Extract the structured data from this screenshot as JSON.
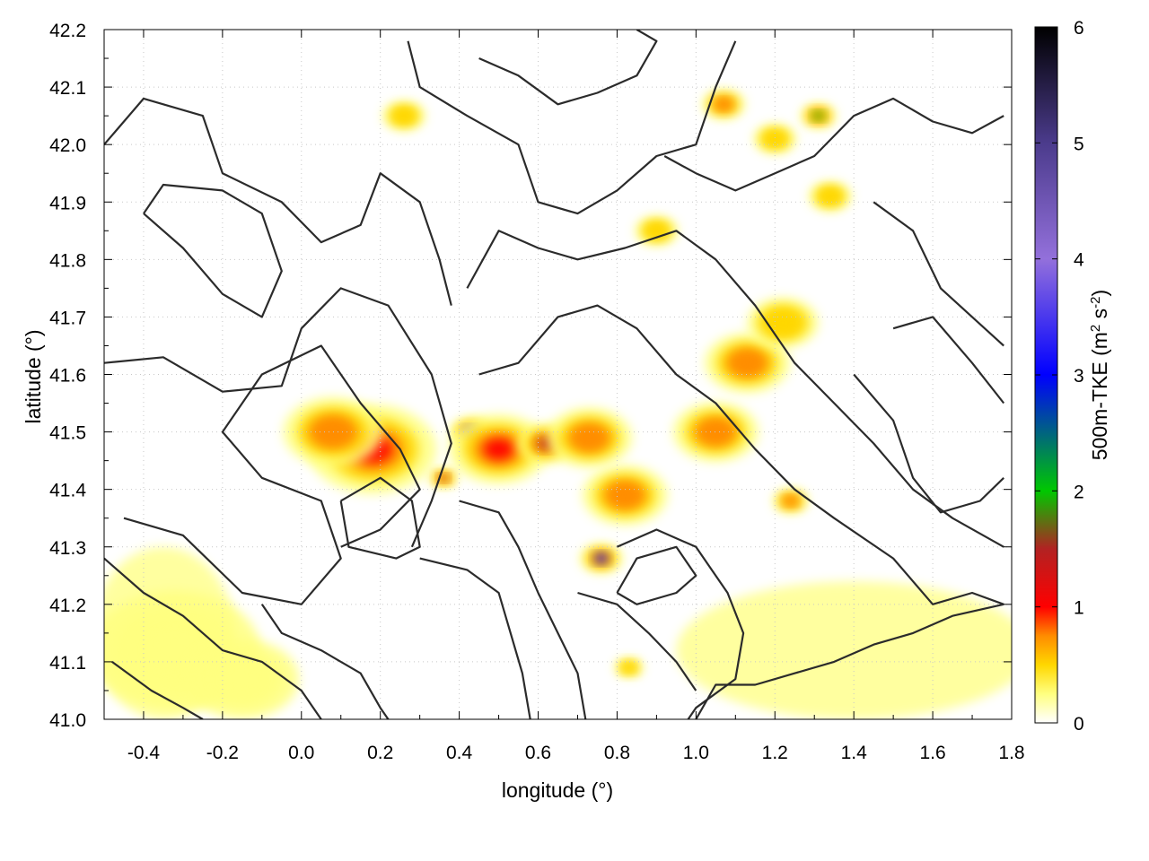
{
  "chart_data": {
    "type": "heatmap",
    "title": "",
    "xlabel": "longitude (°)",
    "ylabel": "latitude (°)",
    "colorbar_label": "500m-TKE (m² s⁻²)",
    "colorbar_label_parts": {
      "main": "500m-TKE (m",
      "sup1": "2",
      "mid": " s",
      "sup2": "-2",
      "end": ")"
    },
    "xlim": [
      -0.5,
      1.8
    ],
    "ylim": [
      41.0,
      42.2
    ],
    "zlim": [
      0,
      6
    ],
    "x_ticks": [
      "-0.4",
      "-0.2",
      "0.0",
      "0.2",
      "0.4",
      "0.6",
      "0.8",
      "1.0",
      "1.2",
      "1.4",
      "1.6",
      "1.8"
    ],
    "x_tick_values": [
      -0.4,
      -0.2,
      0.0,
      0.2,
      0.4,
      0.6,
      0.8,
      1.0,
      1.2,
      1.4,
      1.6,
      1.8
    ],
    "y_ticks": [
      "41.0",
      "41.1",
      "41.2",
      "41.3",
      "41.4",
      "41.5",
      "41.6",
      "41.7",
      "41.8",
      "41.9",
      "42.0",
      "42.1",
      "42.2"
    ],
    "y_tick_values": [
      41.0,
      41.1,
      41.2,
      41.3,
      41.4,
      41.5,
      41.6,
      41.7,
      41.8,
      41.9,
      42.0,
      42.1,
      42.2
    ],
    "colorbar_ticks": [
      "0",
      "1",
      "2",
      "3",
      "4",
      "5",
      "6"
    ],
    "colorbar_tick_values": [
      0,
      1,
      2,
      3,
      4,
      5,
      6
    ],
    "colormap": [
      {
        "v": 0.0,
        "color": "#ffffff"
      },
      {
        "v": 0.25,
        "color": "#ffff80"
      },
      {
        "v": 0.5,
        "color": "#ffd700"
      },
      {
        "v": 0.75,
        "color": "#ff8c00"
      },
      {
        "v": 1.0,
        "color": "#ff0000"
      },
      {
        "v": 1.5,
        "color": "#b22222"
      },
      {
        "v": 2.0,
        "color": "#00c800"
      },
      {
        "v": 3.0,
        "color": "#0000ff"
      },
      {
        "v": 4.0,
        "color": "#9370db"
      },
      {
        "v": 5.0,
        "color": "#4b3b8c"
      },
      {
        "v": 6.0,
        "color": "#000000"
      }
    ],
    "grid": true,
    "contour_color": "#2b2b2b",
    "hotspots": [
      {
        "lon": 0.18,
        "lat": 41.47,
        "tke": 1.1,
        "r": 0.09
      },
      {
        "lon": 0.08,
        "lat": 41.5,
        "tke": 0.9,
        "r": 0.07
      },
      {
        "lon": 0.43,
        "lat": 41.5,
        "tke": 3.0,
        "r": 0.03
      },
      {
        "lon": 0.5,
        "lat": 41.47,
        "tke": 1.0,
        "r": 0.07
      },
      {
        "lon": 0.62,
        "lat": 41.48,
        "tke": 1.6,
        "r": 0.04
      },
      {
        "lon": 0.76,
        "lat": 41.28,
        "tke": 3.0,
        "r": 0.03
      },
      {
        "lon": 0.82,
        "lat": 41.39,
        "tke": 0.8,
        "r": 0.06
      },
      {
        "lon": 0.73,
        "lat": 41.49,
        "tke": 0.8,
        "r": 0.06
      },
      {
        "lon": 1.05,
        "lat": 41.5,
        "tke": 0.8,
        "r": 0.06
      },
      {
        "lon": 1.13,
        "lat": 41.62,
        "tke": 0.9,
        "r": 0.06
      },
      {
        "lon": 1.22,
        "lat": 41.69,
        "tke": 0.7,
        "r": 0.05
      },
      {
        "lon": 1.31,
        "lat": 42.05,
        "tke": 2.4,
        "r": 0.025
      },
      {
        "lon": 1.2,
        "lat": 42.01,
        "tke": 0.7,
        "r": 0.03
      },
      {
        "lon": 1.07,
        "lat": 42.07,
        "tke": 0.8,
        "r": 0.03
      },
      {
        "lon": 0.9,
        "lat": 41.85,
        "tke": 0.6,
        "r": 0.03
      },
      {
        "lon": 1.34,
        "lat": 41.91,
        "tke": 0.6,
        "r": 0.03
      },
      {
        "lon": 0.36,
        "lat": 41.42,
        "tke": 1.8,
        "r": 0.02
      },
      {
        "lon": 1.24,
        "lat": 41.38,
        "tke": 0.8,
        "r": 0.025
      },
      {
        "lon": 0.83,
        "lat": 41.09,
        "tke": 0.6,
        "r": 0.02
      },
      {
        "lon": -0.32,
        "lat": 41.12,
        "tke": 0.45,
        "r": 0.12
      },
      {
        "lon": -0.15,
        "lat": 41.07,
        "tke": 0.35,
        "r": 0.08
      },
      {
        "lon": 0.26,
        "lat": 42.05,
        "tke": 0.5,
        "r": 0.03
      }
    ],
    "background_patches": [
      {
        "lon": 1.4,
        "lat": 41.12,
        "tke": 0.3,
        "rx": 0.45,
        "ry": 0.12
      },
      {
        "lon": -0.35,
        "lat": 41.15,
        "tke": 0.25,
        "rx": 0.18,
        "ry": 0.15
      },
      {
        "lon": 0.05,
        "lat": 41.62,
        "tke": 0.15,
        "rx": 0.3,
        "ry": 0.2
      }
    ],
    "contours": [
      [
        [
          -0.45,
          41.35
        ],
        [
          -0.3,
          41.32
        ],
        [
          -0.15,
          41.22
        ],
        [
          0.0,
          41.2
        ],
        [
          0.1,
          41.28
        ],
        [
          0.05,
          41.38
        ],
        [
          -0.1,
          41.42
        ],
        [
          -0.2,
          41.5
        ],
        [
          -0.1,
          41.6
        ],
        [
          0.05,
          41.65
        ],
        [
          0.15,
          41.55
        ],
        [
          0.25,
          41.47
        ],
        [
          0.3,
          41.4
        ],
        [
          0.2,
          41.33
        ],
        [
          0.1,
          41.3
        ]
      ],
      [
        [
          -0.5,
          41.62
        ],
        [
          -0.35,
          41.63
        ],
        [
          -0.2,
          41.57
        ],
        [
          -0.05,
          41.58
        ],
        [
          0.0,
          41.68
        ],
        [
          0.1,
          41.75
        ],
        [
          0.22,
          41.72
        ],
        [
          0.33,
          41.6
        ],
        [
          0.38,
          41.48
        ],
        [
          0.33,
          41.38
        ],
        [
          0.28,
          41.3
        ]
      ],
      [
        [
          -0.5,
          42.0
        ],
        [
          -0.4,
          42.08
        ],
        [
          -0.25,
          42.05
        ],
        [
          -0.2,
          41.95
        ],
        [
          -0.05,
          41.9
        ],
        [
          0.05,
          41.83
        ],
        [
          0.15,
          41.86
        ],
        [
          0.2,
          41.95
        ],
        [
          0.3,
          41.9
        ],
        [
          0.35,
          41.8
        ],
        [
          0.38,
          41.72
        ]
      ],
      [
        [
          -0.4,
          41.88
        ],
        [
          -0.3,
          41.82
        ],
        [
          -0.2,
          41.74
        ],
        [
          -0.1,
          41.7
        ],
        [
          -0.05,
          41.78
        ],
        [
          -0.1,
          41.88
        ],
        [
          -0.2,
          41.92
        ],
        [
          -0.35,
          41.93
        ],
        [
          -0.4,
          41.88
        ]
      ],
      [
        [
          0.27,
          42.18
        ],
        [
          0.3,
          42.1
        ],
        [
          0.42,
          42.05
        ],
        [
          0.55,
          42.0
        ],
        [
          0.6,
          41.9
        ],
        [
          0.7,
          41.88
        ],
        [
          0.8,
          41.92
        ],
        [
          0.9,
          41.98
        ],
        [
          1.0,
          42.0
        ],
        [
          1.05,
          42.1
        ],
        [
          1.1,
          42.18
        ]
      ],
      [
        [
          0.45,
          42.15
        ],
        [
          0.55,
          42.12
        ],
        [
          0.65,
          42.07
        ],
        [
          0.75,
          42.09
        ],
        [
          0.85,
          42.12
        ],
        [
          0.9,
          42.18
        ],
        [
          0.85,
          42.2
        ]
      ],
      [
        [
          0.42,
          41.75
        ],
        [
          0.5,
          41.85
        ],
        [
          0.6,
          41.82
        ],
        [
          0.7,
          41.8
        ],
        [
          0.82,
          41.82
        ],
        [
          0.95,
          41.85
        ],
        [
          1.05,
          41.8
        ],
        [
          1.15,
          41.72
        ],
        [
          1.25,
          41.62
        ],
        [
          1.35,
          41.55
        ],
        [
          1.45,
          41.48
        ],
        [
          1.55,
          41.4
        ],
        [
          1.65,
          41.35
        ],
        [
          1.78,
          41.3
        ]
      ],
      [
        [
          0.45,
          41.6
        ],
        [
          0.55,
          41.62
        ],
        [
          0.65,
          41.7
        ],
        [
          0.75,
          41.72
        ],
        [
          0.85,
          41.68
        ],
        [
          0.95,
          41.6
        ],
        [
          1.05,
          41.55
        ],
        [
          1.15,
          41.47
        ],
        [
          1.25,
          41.4
        ],
        [
          1.35,
          41.35
        ],
        [
          1.5,
          41.28
        ],
        [
          1.6,
          41.2
        ],
        [
          1.7,
          41.22
        ],
        [
          1.78,
          41.2
        ]
      ],
      [
        [
          0.4,
          41.38
        ],
        [
          0.5,
          41.36
        ],
        [
          0.55,
          41.3
        ],
        [
          0.6,
          41.22
        ],
        [
          0.65,
          41.15
        ],
        [
          0.7,
          41.08
        ],
        [
          0.72,
          41.0
        ]
      ],
      [
        [
          0.3,
          41.28
        ],
        [
          0.42,
          41.26
        ],
        [
          0.5,
          41.22
        ],
        [
          0.53,
          41.15
        ],
        [
          0.56,
          41.08
        ],
        [
          0.58,
          41.0
        ]
      ],
      [
        [
          0.8,
          41.3
        ],
        [
          0.9,
          41.33
        ],
        [
          1.0,
          41.3
        ],
        [
          1.08,
          41.22
        ],
        [
          1.12,
          41.15
        ],
        [
          1.1,
          41.07
        ],
        [
          1.0,
          41.02
        ],
        [
          0.98,
          41.0
        ]
      ],
      [
        [
          0.7,
          41.22
        ],
        [
          0.8,
          41.2
        ],
        [
          0.88,
          41.15
        ],
        [
          0.95,
          41.1
        ],
        [
          1.0,
          41.05
        ]
      ],
      [
        [
          1.0,
          41.0
        ],
        [
          1.05,
          41.06
        ],
        [
          1.15,
          41.06
        ],
        [
          1.25,
          41.08
        ],
        [
          1.35,
          41.1
        ],
        [
          1.45,
          41.13
        ],
        [
          1.55,
          41.15
        ],
        [
          1.65,
          41.18
        ],
        [
          1.78,
          41.2
        ]
      ],
      [
        [
          0.92,
          41.98
        ],
        [
          1.0,
          41.95
        ],
        [
          1.1,
          41.92
        ],
        [
          1.2,
          41.95
        ],
        [
          1.3,
          41.98
        ],
        [
          1.4,
          42.05
        ],
        [
          1.5,
          42.08
        ],
        [
          1.6,
          42.04
        ],
        [
          1.7,
          42.02
        ],
        [
          1.78,
          42.05
        ]
      ],
      [
        [
          1.45,
          41.9
        ],
        [
          1.55,
          41.85
        ],
        [
          1.62,
          41.75
        ],
        [
          1.7,
          41.7
        ],
        [
          1.78,
          41.65
        ]
      ],
      [
        [
          1.4,
          41.6
        ],
        [
          1.5,
          41.52
        ],
        [
          1.55,
          41.42
        ],
        [
          1.62,
          41.36
        ],
        [
          1.72,
          41.38
        ],
        [
          1.78,
          41.42
        ]
      ],
      [
        [
          -0.5,
          41.28
        ],
        [
          -0.4,
          41.22
        ],
        [
          -0.3,
          41.18
        ],
        [
          -0.2,
          41.12
        ],
        [
          -0.1,
          41.1
        ],
        [
          0.0,
          41.05
        ],
        [
          0.05,
          41.0
        ]
      ],
      [
        [
          -0.48,
          41.1
        ],
        [
          -0.38,
          41.05
        ],
        [
          -0.3,
          41.02
        ],
        [
          -0.25,
          41.0
        ]
      ],
      [
        [
          0.1,
          41.38
        ],
        [
          0.2,
          41.42
        ],
        [
          0.28,
          41.38
        ],
        [
          0.3,
          41.3
        ],
        [
          0.24,
          41.28
        ],
        [
          0.12,
          41.3
        ],
        [
          0.1,
          41.38
        ]
      ],
      [
        [
          0.8,
          41.22
        ],
        [
          0.85,
          41.28
        ],
        [
          0.95,
          41.3
        ],
        [
          1.0,
          41.25
        ],
        [
          0.95,
          41.22
        ],
        [
          0.85,
          41.2
        ],
        [
          0.8,
          41.22
        ]
      ],
      [
        [
          1.5,
          41.68
        ],
        [
          1.6,
          41.7
        ],
        [
          1.7,
          41.62
        ],
        [
          1.78,
          41.55
        ]
      ],
      [
        [
          -0.1,
          41.2
        ],
        [
          -0.05,
          41.15
        ],
        [
          0.05,
          41.12
        ],
        [
          0.15,
          41.08
        ],
        [
          0.2,
          41.02
        ],
        [
          0.22,
          41.0
        ]
      ]
    ]
  }
}
